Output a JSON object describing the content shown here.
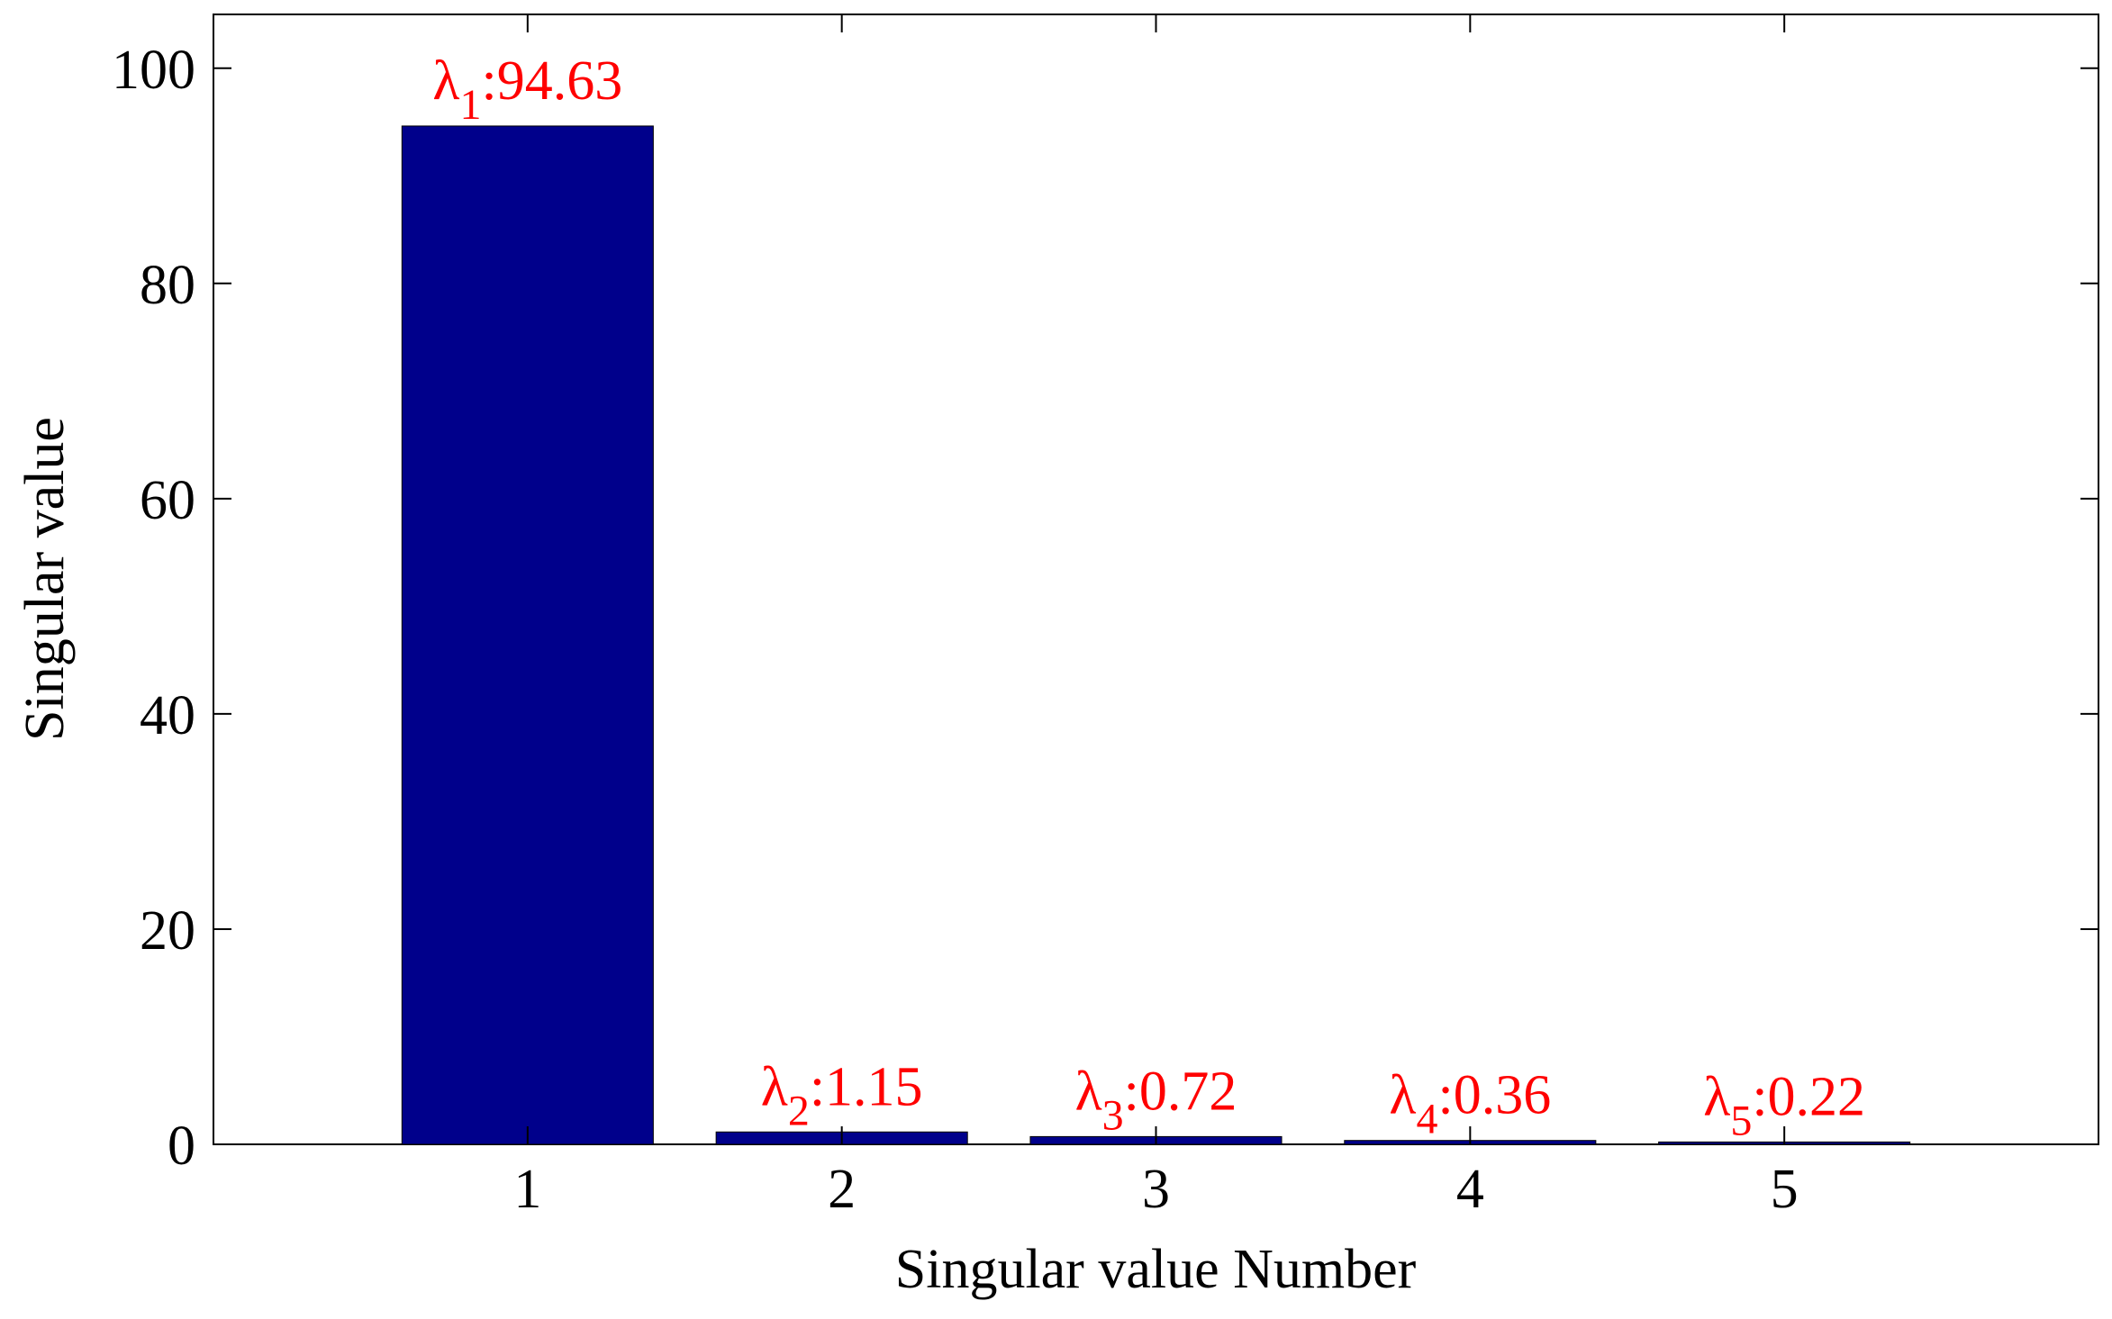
{
  "chart_data": {
    "type": "bar",
    "categories": [
      "1",
      "2",
      "3",
      "4",
      "5"
    ],
    "values": [
      94.63,
      1.15,
      0.72,
      0.36,
      0.22
    ],
    "data_labels": [
      {
        "symbol": "λ",
        "subscript": "1",
        "text": ":94.63"
      },
      {
        "symbol": "λ",
        "subscript": "2",
        "text": ":1.15"
      },
      {
        "symbol": "λ",
        "subscript": "3",
        "text": ":0.72"
      },
      {
        "symbol": "λ",
        "subscript": "4",
        "text": ":0.36"
      },
      {
        "symbol": "λ",
        "subscript": "5",
        "text": ":0.22"
      }
    ],
    "title": "",
    "xlabel": "Singular value Number",
    "ylabel": "Singular value",
    "xlim": [
      0,
      6
    ],
    "ylim": [
      0,
      105
    ],
    "yticks": [
      0,
      20,
      40,
      60,
      80,
      100
    ],
    "grid": false,
    "colors": {
      "bar": "#00008b",
      "label": "#ff0000",
      "axis": "#000000"
    }
  }
}
